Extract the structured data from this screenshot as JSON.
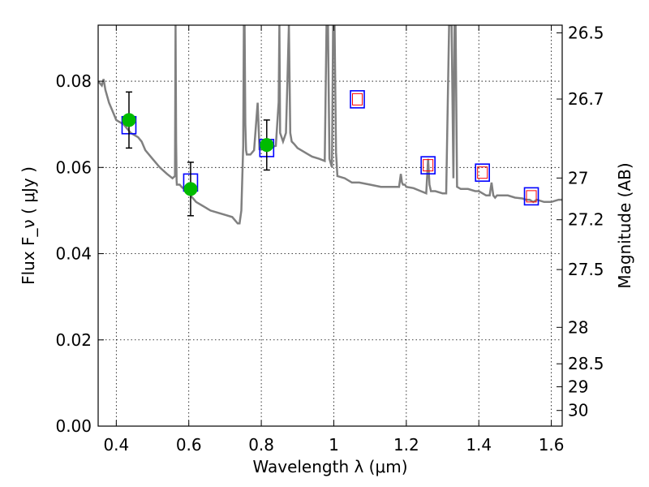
{
  "chart_data": {
    "type": "scatter",
    "xlabel": "Wavelength  λ (μm)",
    "ylabel": "Flux  F_ν  ( μJy )",
    "ylabel_right": "Magnitude (AB)",
    "xlim": [
      0.35,
      1.63
    ],
    "ylim": [
      0.0,
      0.093
    ],
    "x_ticks": [
      0.4,
      0.6,
      0.8,
      1.0,
      1.2,
      1.4,
      1.6
    ],
    "x_tick_labels": [
      "0.4",
      "0.6",
      "0.8",
      "1",
      "1.2",
      "1.4",
      "1.6"
    ],
    "y_ticks": [
      0.0,
      0.02,
      0.04,
      0.06,
      0.08
    ],
    "y_tick_labels": [
      "0.00",
      "0.02",
      "0.04",
      "0.06",
      "0.08"
    ],
    "mag_ticks": [
      26.5,
      26.7,
      27,
      27.2,
      27.5,
      28,
      28.5,
      29,
      30
    ],
    "mag_tick_labels": [
      "26.5",
      "26.7",
      "27",
      "27.2",
      "27.5",
      "28",
      "28.5",
      "29",
      "30"
    ],
    "grid": true,
    "colors": {
      "model": "#808080",
      "observed": "#00bb00",
      "model_box": "#0000ff",
      "model_box_inner": "#ff0000",
      "errorbar": "#000000"
    },
    "model_spectrum": {
      "x": [
        0.35,
        0.36,
        0.365,
        0.37,
        0.38,
        0.39,
        0.4,
        0.42,
        0.44,
        0.46,
        0.47,
        0.48,
        0.5,
        0.52,
        0.54,
        0.555,
        0.562,
        0.5635,
        0.565,
        0.5665,
        0.567,
        0.575,
        0.58,
        0.6,
        0.62,
        0.64,
        0.66,
        0.68,
        0.7,
        0.72,
        0.73,
        0.735,
        0.74,
        0.745,
        0.75,
        0.752,
        0.754,
        0.756,
        0.758,
        0.76,
        0.77,
        0.78,
        0.79,
        0.795,
        0.8,
        0.82,
        0.84,
        0.848,
        0.85,
        0.852,
        0.86,
        0.868,
        0.872,
        0.876,
        0.88,
        0.884,
        0.89,
        0.9,
        0.92,
        0.94,
        0.96,
        0.975,
        0.98,
        0.984,
        0.988,
        0.995,
        0.998,
        1.002,
        1.006,
        1.01,
        1.03,
        1.05,
        1.07,
        1.1,
        1.13,
        1.16,
        1.18,
        1.185,
        1.188,
        1.191,
        1.196,
        1.2,
        1.22,
        1.24,
        1.255,
        1.26,
        1.264,
        1.268,
        1.272,
        1.28,
        1.3,
        1.31,
        1.318,
        1.325,
        1.33,
        1.333,
        1.336,
        1.34,
        1.35,
        1.37,
        1.39,
        1.4,
        1.42,
        1.43,
        1.435,
        1.44,
        1.445,
        1.45,
        1.48,
        1.5,
        1.52,
        1.53,
        1.54,
        1.55,
        1.56,
        1.58,
        1.6,
        1.62,
        1.63
      ],
      "y": [
        0.08,
        0.079,
        0.0805,
        0.078,
        0.075,
        0.073,
        0.071,
        0.07,
        0.068,
        0.067,
        0.066,
        0.064,
        0.062,
        0.06,
        0.0585,
        0.0575,
        0.058,
        0.093,
        0.066,
        0.057,
        0.056,
        0.056,
        0.0555,
        0.054,
        0.052,
        0.051,
        0.05,
        0.0495,
        0.049,
        0.0485,
        0.0475,
        0.047,
        0.047,
        0.05,
        0.065,
        0.093,
        0.093,
        0.07,
        0.064,
        0.063,
        0.063,
        0.064,
        0.075,
        0.064,
        0.065,
        0.0645,
        0.065,
        0.0752,
        0.093,
        0.068,
        0.066,
        0.068,
        0.08,
        0.093,
        0.068,
        0.066,
        0.0655,
        0.0645,
        0.0635,
        0.0625,
        0.062,
        0.0615,
        0.093,
        0.093,
        0.062,
        0.06,
        0.093,
        0.093,
        0.0635,
        0.058,
        0.0575,
        0.0565,
        0.0565,
        0.056,
        0.0555,
        0.0555,
        0.0555,
        0.0585,
        0.0565,
        0.056,
        0.056,
        0.0555,
        0.0552,
        0.0545,
        0.054,
        0.062,
        0.056,
        0.0545,
        0.0545,
        0.0545,
        0.054,
        0.054,
        0.093,
        0.093,
        0.0575,
        0.093,
        0.093,
        0.0555,
        0.055,
        0.055,
        0.0545,
        0.0545,
        0.0535,
        0.0535,
        0.0565,
        0.0535,
        0.053,
        0.0535,
        0.0535,
        0.053,
        0.0528,
        0.0525,
        0.0525,
        0.052,
        0.0525,
        0.052,
        0.052,
        0.0525,
        0.0525
      ]
    },
    "model_points": {
      "x": [
        0.435,
        0.605,
        0.815,
        1.065,
        1.26,
        1.41,
        1.545
      ],
      "y": [
        0.0698,
        0.0565,
        0.0645,
        0.0758,
        0.0605,
        0.0588,
        0.0533
      ]
    },
    "observed_points": {
      "x": [
        0.435,
        0.605,
        0.815
      ],
      "y": [
        0.071,
        0.055,
        0.0652
      ],
      "yerr": [
        0.0065,
        0.0062,
        0.0058
      ]
    }
  }
}
